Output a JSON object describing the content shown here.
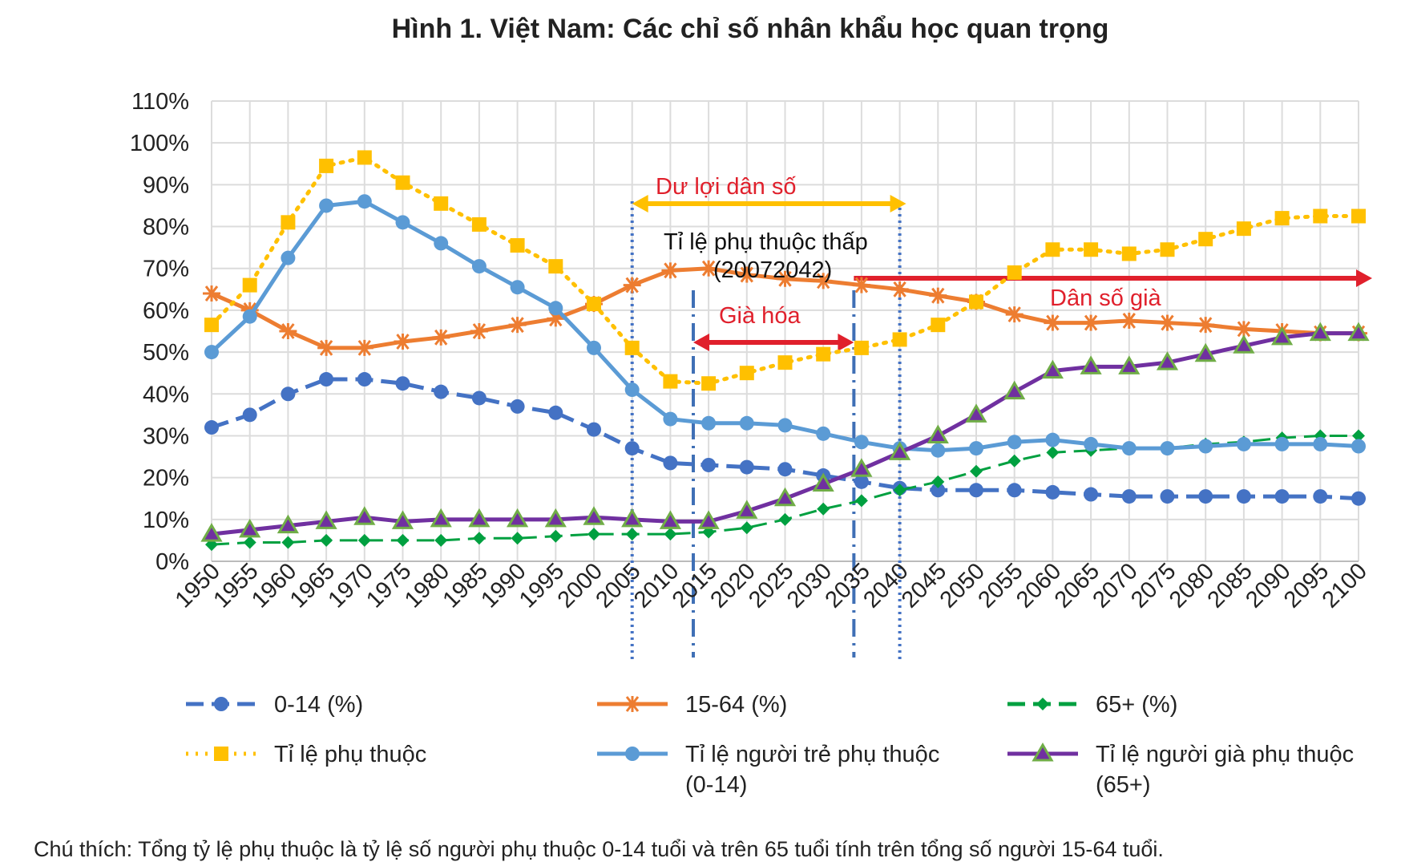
{
  "chart_data": {
    "type": "line",
    "title": "Hình 1. Việt Nam: Các chỉ số nhân khẩu học quan trọng",
    "xlabel": "",
    "ylabel": "",
    "ylim": [
      0,
      110
    ],
    "yticks": [
      "0%",
      "10%",
      "20%",
      "30%",
      "40%",
      "50%",
      "60%",
      "70%",
      "80%",
      "90%",
      "100%",
      "110%"
    ],
    "grid": true,
    "legend_position": "bottom",
    "x": [
      1950,
      1955,
      1960,
      1965,
      1970,
      1975,
      1980,
      1985,
      1990,
      1995,
      2000,
      2005,
      2010,
      2015,
      2020,
      2025,
      2030,
      2035,
      2040,
      2045,
      2050,
      2055,
      2060,
      2065,
      2070,
      2075,
      2080,
      2085,
      2090,
      2095,
      2100
    ],
    "series": [
      {
        "name": "0-14 (%)",
        "color": "#4472C4",
        "style": "dashed",
        "marker": "circle",
        "values": [
          32,
          35,
          40,
          43.5,
          43.5,
          42.5,
          40.5,
          39,
          37,
          35.5,
          31.5,
          27,
          23.5,
          23,
          22.5,
          22,
          20.5,
          19,
          17.5,
          17,
          17,
          17,
          16.5,
          16,
          15.5,
          15.5,
          15.5,
          15.5,
          15.5,
          15.5,
          15
        ]
      },
      {
        "name": "15-64 (%)",
        "color": "#ED7D31",
        "style": "solid",
        "marker": "asterisk",
        "values": [
          64,
          60,
          55,
          51,
          51,
          52.5,
          53.5,
          55,
          56.5,
          58,
          61.5,
          66,
          69.5,
          70,
          68.5,
          67.5,
          67,
          66,
          65,
          63.5,
          62,
          59,
          57,
          57,
          57.5,
          57,
          56.5,
          55.5,
          55,
          54.5,
          54.5
        ]
      },
      {
        "name": "65+ (%)",
        "color": "#00A040",
        "style": "dashed",
        "marker": "diamond",
        "values": [
          4,
          4.5,
          4.5,
          5,
          5,
          5,
          5,
          5.5,
          5.5,
          6,
          6.5,
          6.5,
          6.5,
          7,
          8,
          10,
          12.5,
          14.5,
          17,
          19,
          21.5,
          24,
          26,
          26.5,
          27,
          27,
          28,
          28.5,
          29.5,
          30,
          30
        ]
      },
      {
        "name": "Tỉ lệ phụ thuộc",
        "color": "#FFC000",
        "style": "dotted",
        "marker": "square",
        "values": [
          56.5,
          66,
          81,
          94.5,
          96.5,
          90.5,
          85.5,
          80.5,
          75.5,
          70.5,
          61.5,
          51,
          43,
          42.5,
          45,
          47.5,
          49.5,
          51,
          53,
          56.5,
          62,
          69,
          74.5,
          74.5,
          73.5,
          74.5,
          77,
          79.5,
          82,
          82.5,
          82.5
        ]
      },
      {
        "name": "Tỉ lệ người trẻ  phụ thuộc (0-14)",
        "name_line1": "Tỉ lệ người trẻ  phụ thuộc",
        "name_line2": "(0-14)",
        "color": "#5B9BD5",
        "style": "solid",
        "marker": "circle",
        "values": [
          50,
          58.5,
          72.5,
          85,
          86,
          81,
          76,
          70.5,
          65.5,
          60.5,
          51,
          41,
          34,
          33,
          33,
          32.5,
          30.5,
          28.5,
          27,
          26.5,
          27,
          28.5,
          29,
          28,
          27,
          27,
          27.5,
          28,
          28,
          28,
          27.5
        ]
      },
      {
        "name": "Tỉ lệ người già phụ thuộc (65+)",
        "name_line1": "Tỉ lệ người già phụ thuộc",
        "name_line2": "(65+)",
        "color": "#7030A0",
        "style": "solid",
        "marker": "triangle",
        "values": [
          6.5,
          7.5,
          8.5,
          9.5,
          10.5,
          9.5,
          10,
          10,
          10,
          10,
          10.5,
          10,
          9.5,
          9.5,
          12,
          15,
          18.5,
          22,
          26,
          30,
          35,
          40.5,
          45.5,
          46.5,
          46.5,
          47.5,
          49.5,
          51.5,
          53.5,
          54.5,
          54.5
        ]
      }
    ],
    "annotations": {
      "demographic_dividend": {
        "label": "Dư lợi dân số",
        "from": 2005,
        "to": 2040,
        "color": "#FFC000"
      },
      "low_dependency": {
        "line1": "Tỉ lệ phụ thuộc thấp",
        "line2": "(20072042)"
      },
      "aging": {
        "label": "Già hóa",
        "from": 2013,
        "to": 2034,
        "color": "#e0202c"
      },
      "aged_population": {
        "label": "Dân số già",
        "from": 2034,
        "color": "#e0202c"
      }
    },
    "caption": "Chú thích: Tổng tỷ lệ phụ thuộc là tỷ lệ số người phụ thuộc 0-14 tuổi và trên 65 tuổi tính trên tổng số người 15-64 tuổi."
  }
}
